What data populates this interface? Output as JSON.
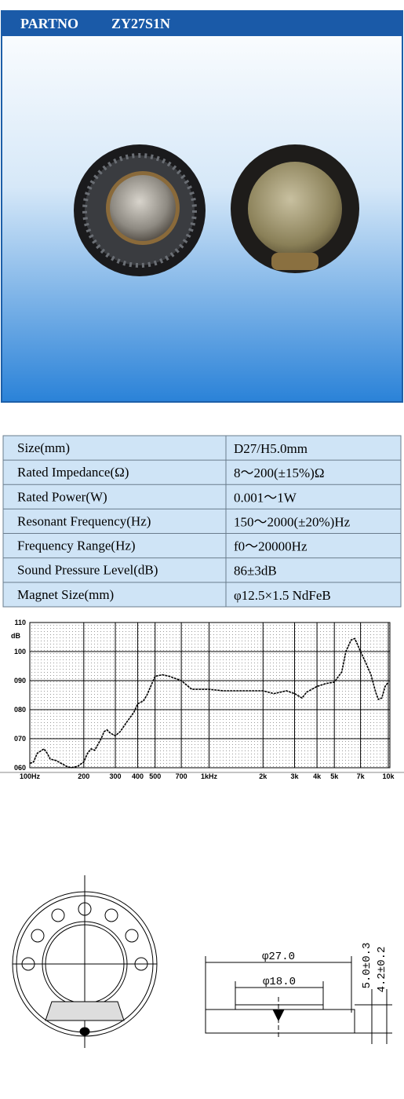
{
  "header": {
    "label": "PARTNO",
    "part": "ZY27S1N"
  },
  "specs": {
    "rows": [
      [
        "Size(mm)",
        "D27/H5.0mm"
      ],
      [
        "Rated Impedance(Ω)",
        "8～200(±15%)Ω"
      ],
      [
        "Rated Power(W)",
        "0.001～1W"
      ],
      [
        "Resonant Frequency(Hz)",
        "150～2000(±20%)Hz"
      ],
      [
        "Frequency Range(Hz)",
        "f0～20000Hz"
      ],
      [
        "Sound Pressure Level(dB)",
        "86±3dB"
      ],
      [
        "Magnet Size(mm)",
        "φ12.5×1.5 NdFeB"
      ]
    ]
  },
  "chart_data": {
    "type": "line",
    "y_label": "dB",
    "color": "#000000",
    "xscale": "log",
    "grid": true,
    "x": [
      100,
      105,
      110,
      120,
      125,
      130,
      140,
      150,
      160,
      170,
      185,
      200,
      210,
      220,
      230,
      250,
      260,
      270,
      280,
      300,
      320,
      350,
      380,
      400,
      430,
      450,
      480,
      500,
      550,
      600,
      700,
      800,
      900,
      1000,
      1200,
      1500,
      2000,
      2300,
      2700,
      3000,
      3300,
      3500,
      4000,
      4500,
      5000,
      5500,
      5800,
      6200,
      6500,
      7000,
      7500,
      8000,
      8500,
      8800,
      9200,
      9600,
      10000
    ],
    "values": [
      61.5,
      62,
      65,
      66.5,
      65,
      63,
      62.5,
      61.5,
      60.5,
      60,
      60.5,
      62,
      65,
      66.5,
      66,
      70,
      72.5,
      73,
      72,
      71,
      72.5,
      76,
      79,
      82,
      83,
      85,
      89,
      91.5,
      92,
      91.5,
      90,
      87,
      87,
      87,
      86.5,
      86.5,
      86.5,
      85.5,
      86.5,
      85.5,
      84,
      86,
      88,
      89,
      89.5,
      93,
      100,
      104,
      104.5,
      100,
      96,
      92,
      86,
      83.5,
      84,
      88,
      89.5
    ],
    "xlim": [
      100,
      10000
    ],
    "xticks": [
      {
        "value": 100,
        "label": "100Hz"
      },
      200,
      300,
      400,
      500,
      700,
      {
        "value": 1000,
        "label": "1kHz"
      },
      {
        "value": 2000,
        "label": "2k"
      },
      {
        "value": 3000,
        "label": "3k"
      },
      {
        "value": 4000,
        "label": "4k"
      },
      {
        "value": 5000,
        "label": "5k"
      },
      {
        "value": 7000,
        "label": "7k"
      },
      {
        "value": 10000,
        "label": "10k"
      }
    ],
    "ylim": [
      60,
      110
    ],
    "yticks": [
      {
        "value": 60,
        "label": "060"
      },
      {
        "value": 70,
        "label": "070"
      },
      {
        "value": 80,
        "label": "080"
      },
      {
        "value": 90,
        "label": "090"
      },
      100,
      110
    ]
  },
  "drawing": {
    "outer_diameter": "φ27.0",
    "inner_diameter": "φ18.0",
    "height_total": "5.0±0.3",
    "height_body": "4.2±0.2"
  }
}
